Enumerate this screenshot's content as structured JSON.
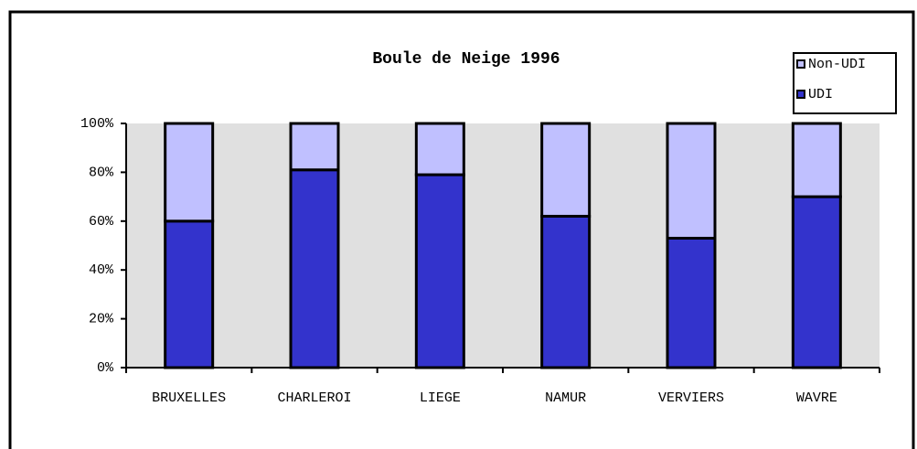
{
  "chart_data": {
    "type": "stacked-bar",
    "title": "Boule de Neige 1996",
    "categories": [
      "BRUXELLES",
      "CHARLEROI",
      "LIEGE",
      "NAMUR",
      "VERVIERS",
      "WAVRE"
    ],
    "series": [
      {
        "name": "UDI",
        "color": "#3333cc",
        "values": [
          60,
          81,
          79,
          62,
          53,
          70
        ]
      },
      {
        "name": "Non-UDI",
        "color": "#c0c0ff",
        "values": [
          40,
          19,
          21,
          38,
          47,
          30
        ]
      }
    ],
    "ylim": [
      0,
      100
    ],
    "yticks": [
      {
        "value": 0,
        "label": "0%"
      },
      {
        "value": 20,
        "label": "20%"
      },
      {
        "value": 40,
        "label": "40%"
      },
      {
        "value": 60,
        "label": "60%"
      },
      {
        "value": 80,
        "label": "80%"
      },
      {
        "value": 100,
        "label": "100%"
      }
    ],
    "legend": "top-right"
  }
}
